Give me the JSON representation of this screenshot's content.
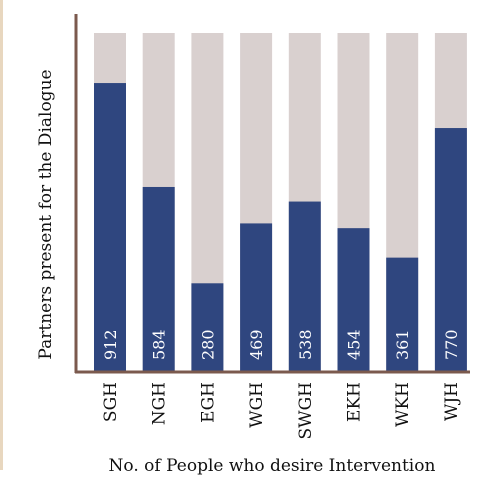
{
  "chart_data": {
    "type": "bar",
    "stacked_background": true,
    "categories": [
      "SGH",
      "NGH",
      "EGH",
      "WGH",
      "SWGH",
      "EKH",
      "WKH",
      "WJH"
    ],
    "values": [
      912,
      584,
      280,
      469,
      538,
      454,
      361,
      770
    ],
    "ylim": [
      0,
      1070
    ],
    "xlabel": "No. of People who desire Intervention",
    "ylabel": "Partners present for the Dialogue",
    "grid": false,
    "colors": {
      "bar": "#2f467f",
      "background_bar": "#d9d0cf",
      "axis": "#7b5a4e"
    }
  }
}
